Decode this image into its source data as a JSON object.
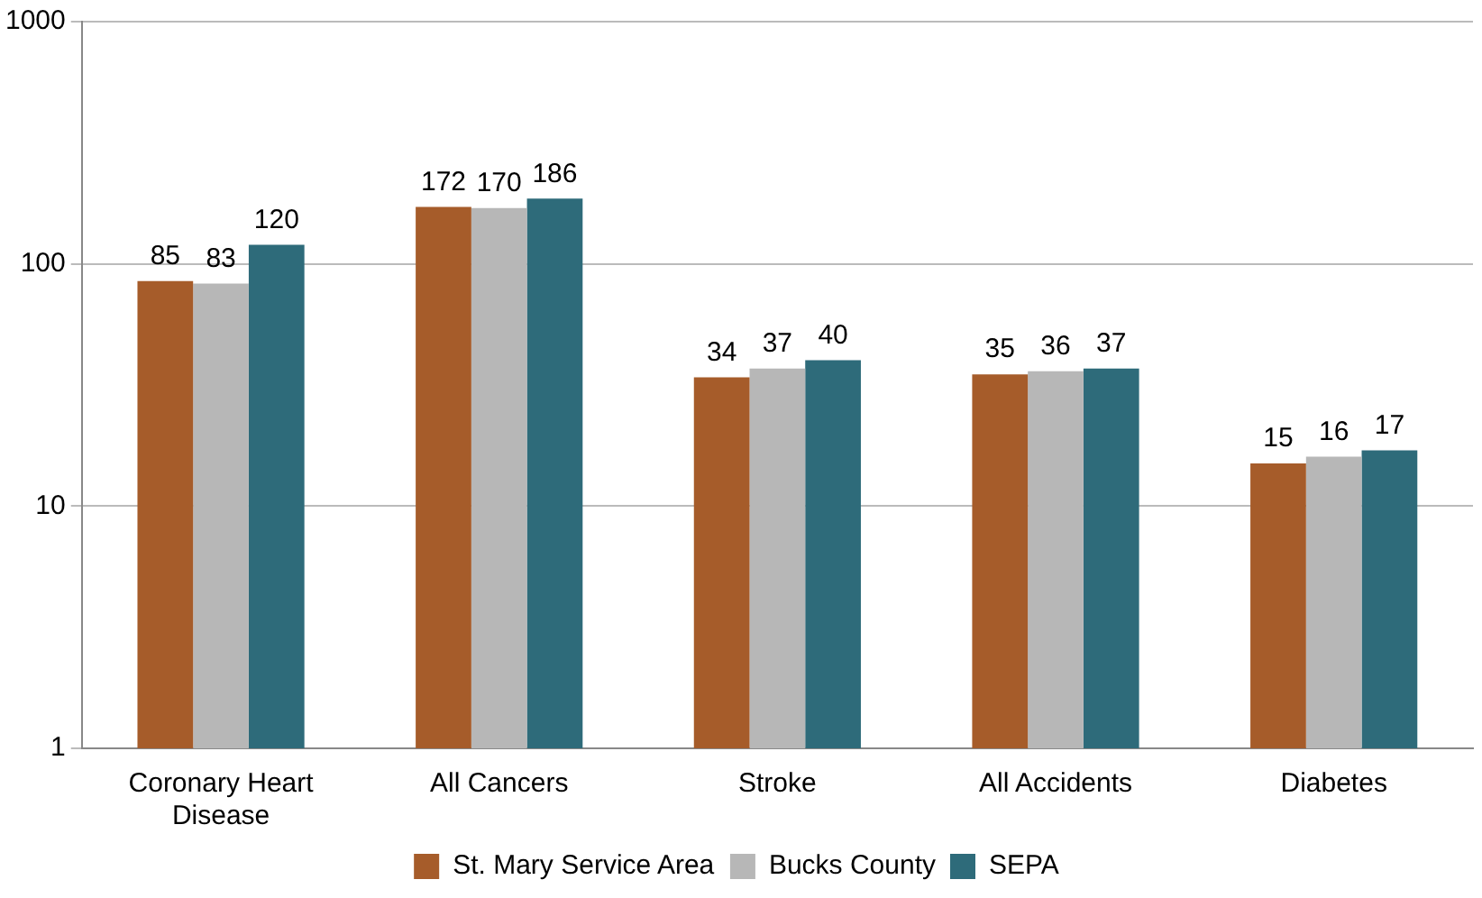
{
  "chart_data": {
    "type": "bar",
    "categories": [
      "Coronary Heart Disease",
      "All Cancers",
      "Stroke",
      "All Accidents",
      "Diabetes"
    ],
    "series": [
      {
        "name": "St. Mary Service Area",
        "color": "#a65c2a",
        "values": [
          85,
          172,
          34,
          35,
          15
        ]
      },
      {
        "name": "Bucks County",
        "color": "#b7b7b7",
        "values": [
          83,
          170,
          37,
          36,
          16
        ]
      },
      {
        "name": "SEPA",
        "color": "#2e6b7a",
        "values": [
          120,
          186,
          40,
          37,
          17
        ]
      }
    ],
    "log": "y",
    "ylim": [
      1,
      1000
    ],
    "yticks": [
      1,
      10,
      100,
      1000
    ],
    "grid": "y",
    "legend": "bottom",
    "data_labels": true
  }
}
